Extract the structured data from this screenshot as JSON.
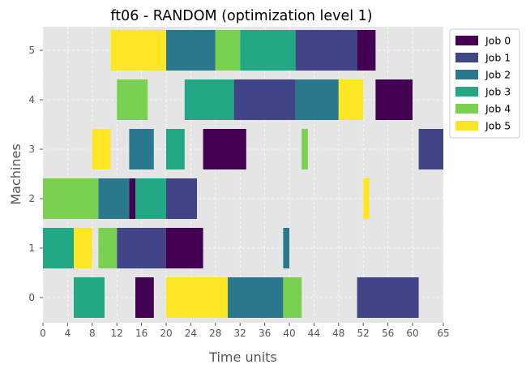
{
  "chart_data": {
    "type": "gantt",
    "title": "ft06 - RANDOM (optimization level 1)",
    "xlabel": "Time units",
    "ylabel": "Machines",
    "xlim": [
      0,
      65
    ],
    "x_ticks": [
      0,
      4,
      8,
      12,
      16,
      20,
      24,
      28,
      32,
      36,
      40,
      44,
      48,
      52,
      56,
      60,
      65
    ],
    "machines": [
      0,
      1,
      2,
      3,
      4,
      5
    ],
    "grid": true,
    "legend_position": "outside-top-right",
    "series": [
      {
        "name": "Job 0",
        "color": "#440154",
        "tasks": [
          {
            "machine": 5,
            "start": 51,
            "end": 54
          },
          {
            "machine": 4,
            "start": 54,
            "end": 60
          },
          {
            "machine": 3,
            "start": 26,
            "end": 33
          },
          {
            "machine": 2,
            "start": 14,
            "end": 15
          },
          {
            "machine": 1,
            "start": 20,
            "end": 26
          },
          {
            "machine": 0,
            "start": 15,
            "end": 18
          }
        ]
      },
      {
        "name": "Job 1",
        "color": "#414487",
        "tasks": [
          {
            "machine": 5,
            "start": 41,
            "end": 51
          },
          {
            "machine": 4,
            "start": 31,
            "end": 41
          },
          {
            "machine": 3,
            "start": 61,
            "end": 65
          },
          {
            "machine": 2,
            "start": 20,
            "end": 25
          },
          {
            "machine": 1,
            "start": 12,
            "end": 20
          },
          {
            "machine": 0,
            "start": 51,
            "end": 61
          }
        ]
      },
      {
        "name": "Job 2",
        "color": "#2a788e",
        "tasks": [
          {
            "machine": 5,
            "start": 20,
            "end": 28
          },
          {
            "machine": 4,
            "start": 41,
            "end": 48
          },
          {
            "machine": 3,
            "start": 14,
            "end": 18
          },
          {
            "machine": 2,
            "start": 9,
            "end": 14
          },
          {
            "machine": 1,
            "start": 39,
            "end": 40
          },
          {
            "machine": 0,
            "start": 30,
            "end": 39
          }
        ]
      },
      {
        "name": "Job 3",
        "color": "#22a884",
        "tasks": [
          {
            "machine": 5,
            "start": 32,
            "end": 41
          },
          {
            "machine": 4,
            "start": 23,
            "end": 31
          },
          {
            "machine": 3,
            "start": 20,
            "end": 23
          },
          {
            "machine": 2,
            "start": 15,
            "end": 20
          },
          {
            "machine": 1,
            "start": 0,
            "end": 5
          },
          {
            "machine": 0,
            "start": 5,
            "end": 10
          }
        ]
      },
      {
        "name": "Job 4",
        "color": "#7ad151",
        "tasks": [
          {
            "machine": 5,
            "start": 28,
            "end": 32
          },
          {
            "machine": 4,
            "start": 12,
            "end": 17
          },
          {
            "machine": 3,
            "start": 42,
            "end": 43
          },
          {
            "machine": 2,
            "start": 0,
            "end": 9
          },
          {
            "machine": 1,
            "start": 9,
            "end": 12
          },
          {
            "machine": 0,
            "start": 39,
            "end": 42
          }
        ]
      },
      {
        "name": "Job 5",
        "color": "#fde725",
        "tasks": [
          {
            "machine": 5,
            "start": 11,
            "end": 20
          },
          {
            "machine": 4,
            "start": 48,
            "end": 52
          },
          {
            "machine": 3,
            "start": 8,
            "end": 11
          },
          {
            "machine": 2,
            "start": 52,
            "end": 53
          },
          {
            "machine": 1,
            "start": 5,
            "end": 8
          },
          {
            "machine": 0,
            "start": 20,
            "end": 30
          }
        ]
      }
    ]
  }
}
